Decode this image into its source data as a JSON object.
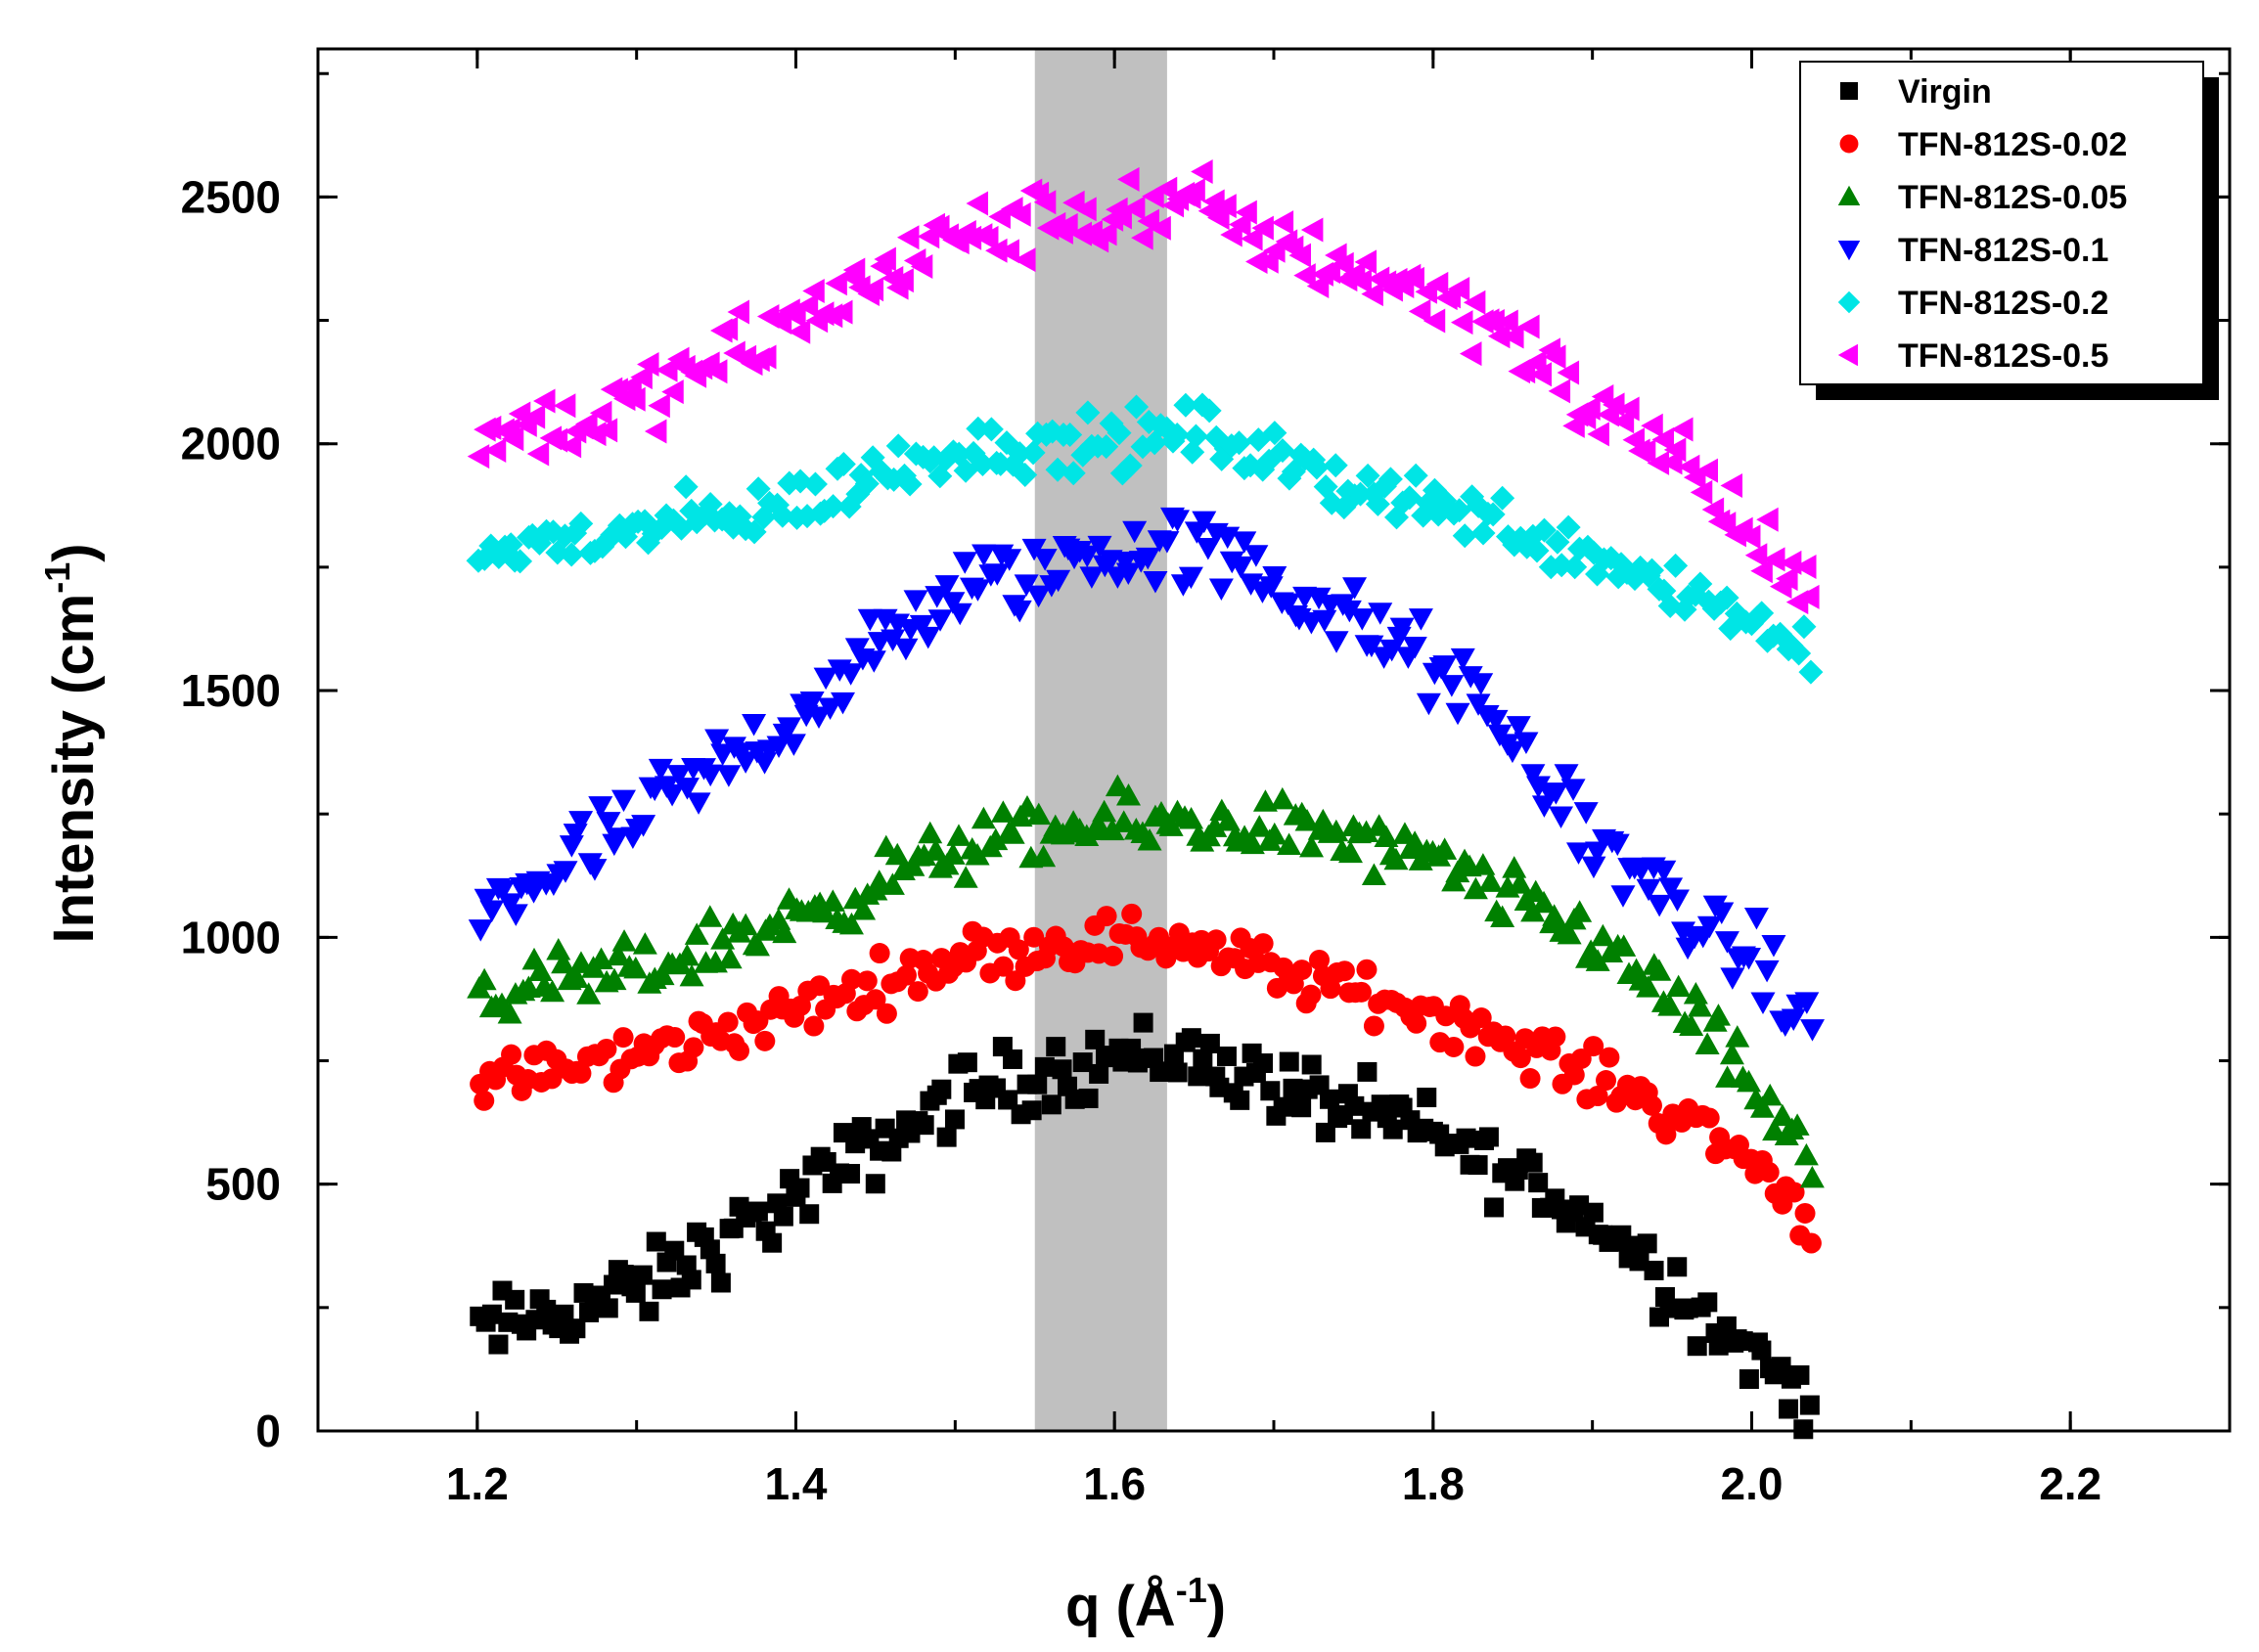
{
  "chart_data": {
    "type": "scatter",
    "xlabel": "q (Å",
    "xlabel_sup": "-1",
    "xlabel_end": ")",
    "ylabel": "Intensity (cm",
    "ylabel_sup": "-1",
    "ylabel_end": ")",
    "xlim": [
      1.1,
      2.3
    ],
    "ylim": [
      0,
      2800
    ],
    "xticks": [
      1.2,
      1.4,
      1.6,
      1.8,
      2.0,
      2.2
    ],
    "xtick_labels": [
      "1.2",
      "1.4",
      "1.6",
      "1.8",
      "2.0",
      "2.2"
    ],
    "yticks": [
      0,
      500,
      1000,
      1500,
      2000,
      2500
    ],
    "ytick_labels": [
      "0",
      "500",
      "1000",
      "1500",
      "2000",
      "2500"
    ],
    "x_minor_step": 0.1,
    "y_minor_step": 250,
    "highlight_band": {
      "x_start": 1.55,
      "x_end": 1.633,
      "color": "#c0c0c0"
    },
    "legend_position": "top-right",
    "x_range": [
      1.2,
      2.04
    ],
    "points_per_series": 220,
    "series": [
      {
        "name": "Virgin",
        "color": "#000000",
        "marker": "square",
        "knots_q": [
          1.2,
          1.3,
          1.4,
          1.5,
          1.6,
          1.65,
          1.7,
          1.8,
          1.85,
          1.9,
          1.95,
          2.0,
          2.04
        ],
        "knots_i": [
          200,
          280,
          470,
          680,
          760,
          760,
          700,
          600,
          520,
          430,
          300,
          150,
          60
        ],
        "noise": 55
      },
      {
        "name": "TFN-812S-0.02",
        "color": "#ff0000",
        "marker": "circle",
        "knots_q": [
          1.2,
          1.3,
          1.4,
          1.5,
          1.6,
          1.65,
          1.7,
          1.8,
          1.9,
          1.95,
          2.0,
          2.04
        ],
        "knots_i": [
          700,
          760,
          850,
          960,
          1000,
          990,
          930,
          850,
          720,
          650,
          550,
          420
        ],
        "noise": 40
      },
      {
        "name": "TFN-812S-0.05",
        "color": "#008000",
        "marker": "triangle-up",
        "knots_q": [
          1.2,
          1.3,
          1.4,
          1.5,
          1.6,
          1.7,
          1.8,
          1.9,
          1.95,
          2.0,
          2.04
        ],
        "knots_i": [
          880,
          930,
          1040,
          1180,
          1230,
          1230,
          1150,
          1000,
          880,
          700,
          520
        ],
        "noise": 45
      },
      {
        "name": "TFN-812S-0.1",
        "color": "#0000ff",
        "marker": "triangle-down",
        "knots_q": [
          1.2,
          1.3,
          1.4,
          1.5,
          1.6,
          1.65,
          1.7,
          1.8,
          1.85,
          1.9,
          1.95,
          2.0,
          2.04
        ],
        "knots_i": [
          1050,
          1230,
          1450,
          1700,
          1780,
          1790,
          1720,
          1550,
          1400,
          1200,
          1070,
          950,
          800
        ],
        "noise": 60
      },
      {
        "name": "TFN-812S-0.2",
        "color": "#00e5e5",
        "marker": "diamond",
        "knots_q": [
          1.2,
          1.3,
          1.4,
          1.5,
          1.6,
          1.65,
          1.7,
          1.8,
          1.9,
          1.95,
          2.0,
          2.04
        ],
        "knots_i": [
          1780,
          1820,
          1880,
          1990,
          2000,
          2030,
          1960,
          1880,
          1780,
          1720,
          1640,
          1580
        ],
        "noise": 45
      },
      {
        "name": "TFN-812S-0.5",
        "color": "#ff00ff",
        "marker": "triangle-left",
        "knots_q": [
          1.2,
          1.3,
          1.4,
          1.5,
          1.6,
          1.65,
          1.7,
          1.8,
          1.85,
          1.9,
          1.95,
          2.0,
          2.04
        ],
        "knots_i": [
          2010,
          2080,
          2250,
          2420,
          2470,
          2480,
          2410,
          2300,
          2230,
          2050,
          2000,
          1800,
          1650
        ],
        "noise": 55
      }
    ]
  }
}
